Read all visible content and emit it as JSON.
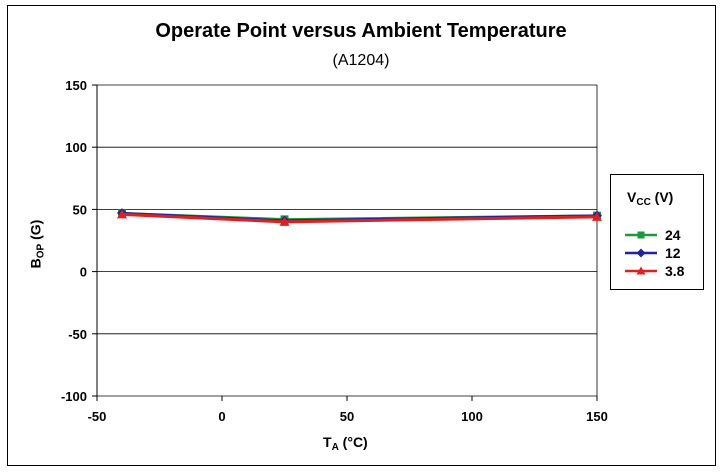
{
  "chart_data": {
    "type": "line",
    "title": "Operate Point versus Ambient Temperature",
    "subtitle": "(A1204)",
    "xlabel": {
      "main": "T",
      "sub": "A",
      "unit": " (°C)"
    },
    "ylabel": {
      "main": "B",
      "sub": "OP",
      "unit": " (G)"
    },
    "xlim": [
      -50,
      150
    ],
    "ylim": [
      -100,
      150
    ],
    "xticks": [
      -50,
      0,
      50,
      100,
      150
    ],
    "yticks": [
      -100,
      -50,
      0,
      50,
      100,
      150
    ],
    "grid": "horizontal",
    "legend_placement": "right",
    "legend_title": {
      "main": "V",
      "sub": "CC",
      "unit": " (V)"
    },
    "x": [
      -40,
      25,
      150
    ],
    "series": [
      {
        "name": "24",
        "color": "#1a9a3a",
        "marker": "square",
        "values": [
          47,
          42,
          45
        ]
      },
      {
        "name": "12",
        "color": "#22229a",
        "marker": "diamond",
        "values": [
          47,
          41,
          45
        ]
      },
      {
        "name": "3.8",
        "color": "#e02020",
        "marker": "triangle",
        "values": [
          46,
          40,
          44
        ]
      }
    ]
  }
}
